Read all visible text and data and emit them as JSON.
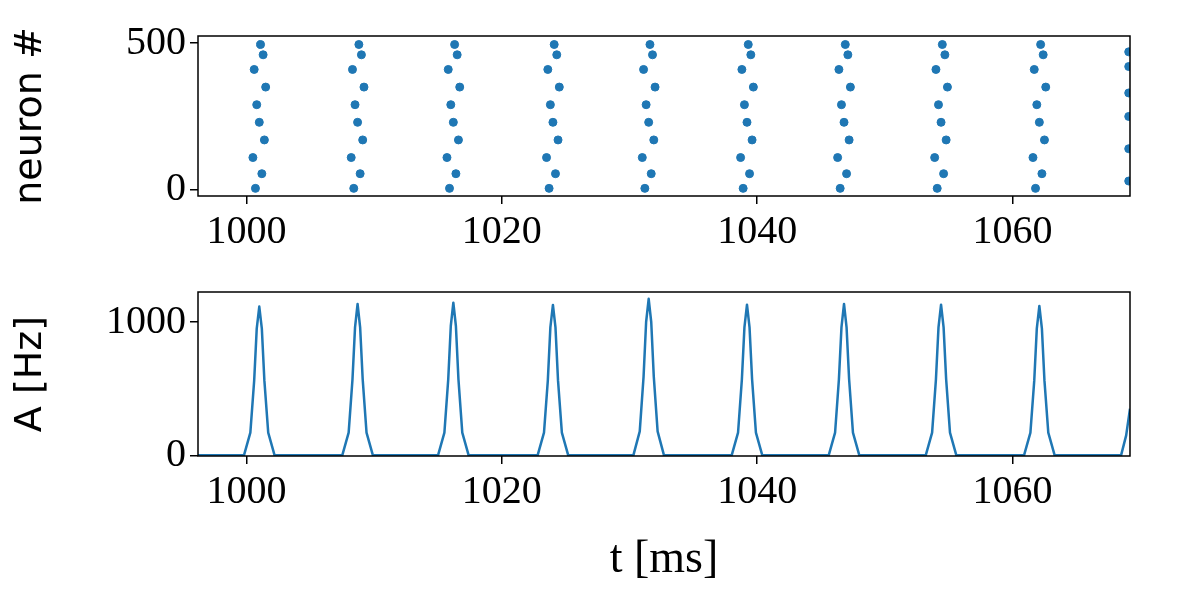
{
  "chart_data": [
    {
      "type": "scatter",
      "ylabel": "neuron #",
      "xlim": [
        996.2,
        1069.2
      ],
      "xticks": [
        1000,
        1020,
        1040,
        1060
      ],
      "ylim": [
        -21,
        524
      ],
      "yticks": [
        0,
        500
      ],
      "marker": "circle",
      "series": [
        {
          "color": "#1f77b4",
          "x": [
            1000.7,
            1001.2,
            1000.5,
            1001.4,
            1001.0,
            1000.8,
            1001.5,
            1000.6,
            1001.3,
            1001.1,
            1008.4,
            1008.9,
            1008.2,
            1009.1,
            1008.7,
            1008.5,
            1009.2,
            1008.3,
            1009.0,
            1008.8,
            1015.9,
            1016.4,
            1015.7,
            1016.6,
            1016.2,
            1016.0,
            1016.7,
            1015.8,
            1016.5,
            1016.3,
            1023.7,
            1024.2,
            1023.5,
            1024.4,
            1024.0,
            1023.8,
            1024.5,
            1023.6,
            1024.3,
            1024.1,
            1031.2,
            1031.7,
            1031.0,
            1031.9,
            1031.5,
            1031.3,
            1032.0,
            1031.1,
            1031.8,
            1031.6,
            1038.9,
            1039.4,
            1038.7,
            1039.6,
            1039.2,
            1039.0,
            1039.7,
            1038.8,
            1039.5,
            1039.3,
            1046.5,
            1047.0,
            1046.3,
            1047.2,
            1046.8,
            1046.6,
            1047.3,
            1046.4,
            1047.1,
            1046.9,
            1054.1,
            1054.6,
            1053.9,
            1054.8,
            1054.4,
            1054.2,
            1054.9,
            1054.0,
            1054.7,
            1054.5,
            1061.8,
            1062.3,
            1061.6,
            1062.5,
            1062.1,
            1061.9,
            1062.6,
            1061.7,
            1062.4,
            1062.2,
            1069.1,
            1069.1,
            1069.1,
            1069.1,
            1069.1,
            1069.1
          ],
          "values": [
            5,
            55,
            110,
            170,
            230,
            290,
            350,
            410,
            460,
            495,
            5,
            55,
            110,
            170,
            230,
            290,
            350,
            410,
            460,
            495,
            5,
            55,
            110,
            170,
            230,
            290,
            350,
            410,
            460,
            495,
            5,
            55,
            110,
            170,
            230,
            290,
            350,
            410,
            460,
            495,
            5,
            55,
            110,
            170,
            230,
            290,
            350,
            410,
            460,
            495,
            5,
            55,
            110,
            170,
            230,
            290,
            350,
            410,
            460,
            495,
            5,
            55,
            110,
            170,
            230,
            290,
            350,
            410,
            460,
            495,
            5,
            55,
            110,
            170,
            230,
            290,
            350,
            410,
            460,
            495,
            5,
            55,
            110,
            170,
            230,
            290,
            350,
            410,
            460,
            495,
            30,
            140,
            250,
            330,
            420,
            470
          ]
        }
      ]
    },
    {
      "type": "line",
      "ylabel": "A [Hz]",
      "xlabel": "t [ms]",
      "xlim": [
        996.2,
        1069.2
      ],
      "xticks": [
        1000,
        1020,
        1040,
        1060
      ],
      "ylim": [
        -5,
        1225
      ],
      "yticks": [
        0,
        1000
      ],
      "marker": "none",
      "line_style": "solid",
      "series": [
        {
          "color": "#1f77b4",
          "x": [
            996.2,
            999.8,
            1000.3,
            1000.6,
            1000.8,
            1001.0,
            1001.2,
            1001.4,
            1001.7,
            1002.2,
            1007.5,
            1008.0,
            1008.3,
            1008.5,
            1008.7,
            1008.9,
            1009.1,
            1009.4,
            1009.9,
            1015.0,
            1015.5,
            1015.8,
            1016.0,
            1016.2,
            1016.4,
            1016.6,
            1016.9,
            1017.4,
            1022.8,
            1023.3,
            1023.6,
            1023.8,
            1024.0,
            1024.2,
            1024.4,
            1024.7,
            1025.2,
            1030.3,
            1030.8,
            1031.1,
            1031.3,
            1031.5,
            1031.7,
            1031.9,
            1032.2,
            1032.7,
            1038.0,
            1038.5,
            1038.8,
            1039.0,
            1039.2,
            1039.4,
            1039.6,
            1039.9,
            1040.4,
            1045.6,
            1046.1,
            1046.4,
            1046.6,
            1046.8,
            1047.0,
            1047.2,
            1047.5,
            1048.0,
            1053.2,
            1053.7,
            1054.0,
            1054.2,
            1054.4,
            1054.6,
            1054.8,
            1055.1,
            1055.6,
            1060.9,
            1061.4,
            1061.7,
            1061.9,
            1062.1,
            1062.3,
            1062.5,
            1062.8,
            1063.3,
            1068.5,
            1068.9,
            1069.2
          ],
          "values": [
            0,
            0,
            170,
            560,
            950,
            1116,
            950,
            560,
            170,
            0,
            0,
            170,
            570,
            960,
            1135,
            960,
            570,
            170,
            0,
            0,
            170,
            570,
            970,
            1145,
            970,
            570,
            170,
            0,
            0,
            170,
            560,
            960,
            1128,
            960,
            560,
            170,
            0,
            0,
            180,
            590,
            1000,
            1174,
            1000,
            590,
            180,
            0,
            0,
            170,
            570,
            960,
            1130,
            960,
            570,
            170,
            0,
            0,
            170,
            570,
            960,
            1135,
            960,
            570,
            170,
            0,
            0,
            170,
            570,
            960,
            1130,
            960,
            570,
            170,
            0,
            0,
            170,
            560,
            950,
            1120,
            950,
            560,
            170,
            0,
            0,
            150,
            350
          ]
        }
      ]
    }
  ]
}
